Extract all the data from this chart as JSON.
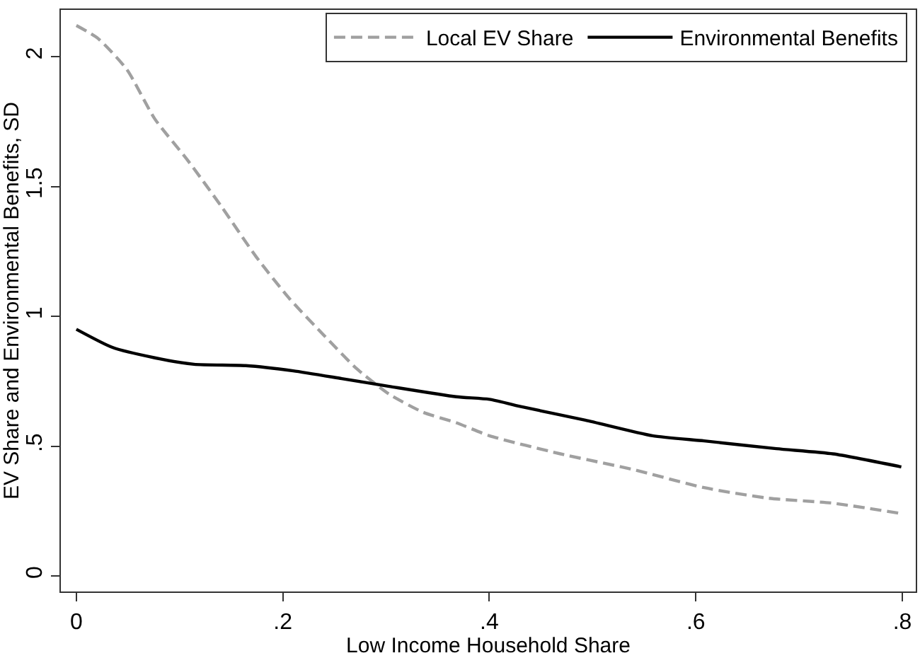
{
  "chart_data": {
    "type": "line",
    "xlabel": "Low Income Household Share",
    "ylabel": "EV Share and Environmental Benefits, SD",
    "xlim": [
      -0.015,
      0.813
    ],
    "xticks": [
      0,
      {
        "value": 0.2,
        "label": ".2"
      },
      {
        "value": 0.4,
        "label": ".4"
      },
      {
        "value": 0.6,
        "label": ".6"
      },
      {
        "value": 0.8,
        "label": ".8"
      }
    ],
    "ylim": [
      -0.06,
      2.18
    ],
    "yticks": [
      0,
      {
        "value": 0.5,
        "label": ".5"
      },
      1,
      1.5,
      2
    ],
    "grid": false,
    "legend": "top right",
    "marker": "none",
    "series": [
      {
        "name": "Local EV Share",
        "color": "#a0a0a0",
        "line_style": "dashed",
        "x": [
          0,
          0.021,
          0.049,
          0.076,
          0.108,
          0.141,
          0.174,
          0.206,
          0.239,
          0.271,
          0.303,
          0.336,
          0.368,
          0.4,
          0.469,
          0.539,
          0.608,
          0.669,
          0.733,
          0.799
        ],
        "values": [
          2.12,
          2.07,
          1.95,
          1.76,
          1.6,
          1.42,
          1.23,
          1.07,
          0.93,
          0.8,
          0.7,
          0.63,
          0.59,
          0.54,
          0.47,
          0.41,
          0.34,
          0.3,
          0.28,
          0.24
        ]
      },
      {
        "name": "Environmental Benefits",
        "color": "#000000",
        "line_style": "solid",
        "x": [
          0,
          0.035,
          0.076,
          0.114,
          0.164,
          0.21,
          0.257,
          0.303,
          0.368,
          0.4,
          0.433,
          0.493,
          0.558,
          0.608,
          0.678,
          0.733,
          0.799
        ],
        "values": [
          0.95,
          0.88,
          0.84,
          0.815,
          0.81,
          0.79,
          0.76,
          0.73,
          0.69,
          0.68,
          0.65,
          0.6,
          0.54,
          0.52,
          0.49,
          0.47,
          0.42
        ]
      }
    ]
  }
}
